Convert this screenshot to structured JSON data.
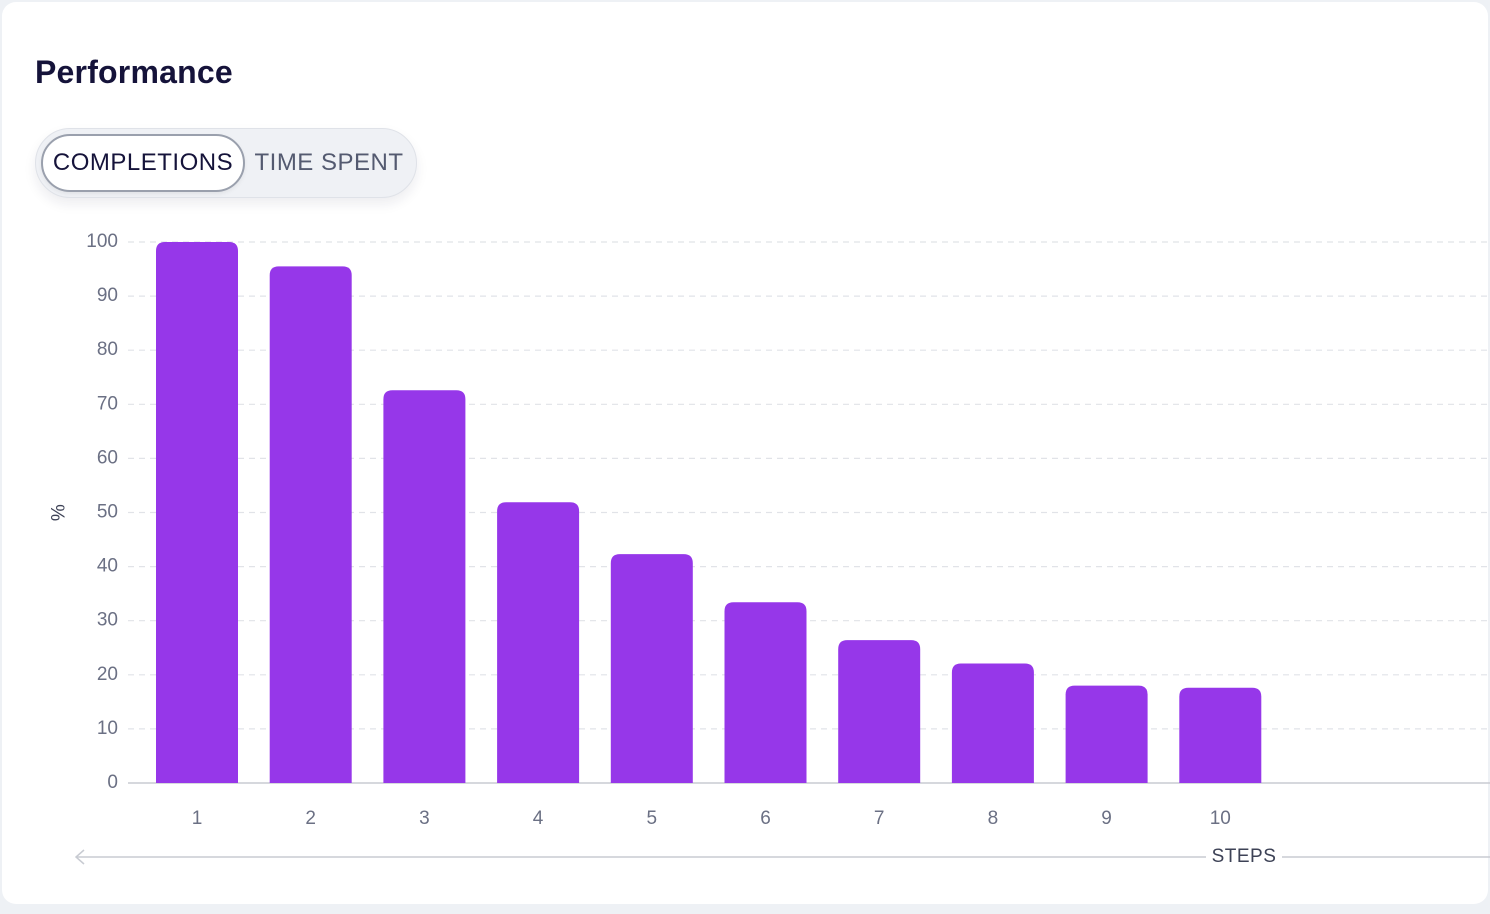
{
  "header": {
    "title": "Performance"
  },
  "toggle": {
    "options": [
      {
        "label": "COMPLETIONS",
        "active": true
      },
      {
        "label": "TIME SPENT",
        "active": false
      }
    ]
  },
  "colors": {
    "bar": "#9637e9",
    "grid": "#e1e3e8",
    "axis": "#c8cbd2"
  },
  "chart_data": {
    "type": "bar",
    "ylabel": "%",
    "xlabel": "STEPS",
    "ylim": [
      0,
      100
    ],
    "yticks": [
      0,
      10,
      20,
      30,
      40,
      50,
      60,
      70,
      80,
      90,
      100
    ],
    "categories": [
      "1",
      "2",
      "3",
      "4",
      "5",
      "6",
      "7",
      "8",
      "9",
      "10"
    ],
    "values": [
      100,
      95.5,
      72.6,
      51.9,
      42.3,
      33.4,
      26.4,
      22.1,
      18,
      17.6
    ],
    "grid": true
  }
}
